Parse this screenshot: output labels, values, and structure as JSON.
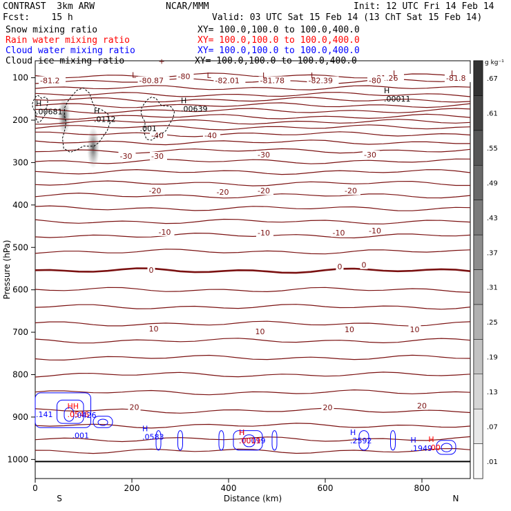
{
  "header": {
    "model": "CONTRAST  3km ARW",
    "org": "NCAR/MMM",
    "init": "Init: 12 UTC Fri 14 Feb 14",
    "fcst": "Fcst:    15 h",
    "valid": "Valid: 03 UTC Sat 15 Feb 14 (13 ChT Sat 15 Feb 14)"
  },
  "fields": [
    {
      "name": "Snow mixing ratio",
      "xy": "XY= 100.0,100.0 to 100.0,400.0",
      "color": "#000000"
    },
    {
      "name": "Rain water mixing ratio",
      "xy": "XY= 100.0,100.0 to 100.0,400.0",
      "color": "#ff0000"
    },
    {
      "name": "Cloud water mixing ratio",
      "xy": "XY= 100.0,100.0 to 100.0,400.0",
      "color": "#0000ff"
    },
    {
      "name": "Cloud ice mixing ratio",
      "xy": "XY= 100.0,100.0 to 100.0,400.0",
      "color": "#000000"
    }
  ],
  "chart_data": {
    "type": "contour-cross-section",
    "xlabel": "Distance (km)",
    "ylabel": "Pressure (hPa)",
    "xlim": [
      0,
      900
    ],
    "ylim": [
      1045,
      60
    ],
    "x_ticks": [
      0,
      200,
      400,
      600,
      800
    ],
    "x_tick_labels": [
      "0",
      "200",
      "400",
      "600",
      "800"
    ],
    "y_ticks": [
      100,
      200,
      300,
      400,
      500,
      600,
      700,
      800,
      900,
      1000
    ],
    "y_tick_labels": [
      "100",
      "200",
      "300",
      "400",
      "500",
      "600",
      "700",
      "800",
      "900",
      "1000"
    ],
    "end_labels": {
      "left": "S",
      "right": "N"
    },
    "colorbar": {
      "unit": "g kg⁻¹",
      "levels": [
        ".01",
        ".07",
        ".13",
        ".19",
        ".25",
        ".31",
        ".37",
        ".43",
        ".49",
        ".55",
        ".61",
        ".67"
      ]
    },
    "surface_pressure": 1005,
    "temperature_contours": {
      "color": "#7a1010",
      "levels_pressure": [
        95,
        108,
        124,
        140,
        152,
        165,
        178,
        192,
        204,
        217,
        233,
        252,
        272,
        297,
        322,
        349,
        378,
        408,
        439,
        472,
        510,
        555,
        600,
        640,
        680,
        720,
        760,
        800,
        842,
        885,
        920,
        952,
        980
      ],
      "labels": [
        {
          "x": 10,
          "p": 113,
          "text": "-81.2"
        },
        {
          "x": 215,
          "p": 113,
          "text": "-80.87"
        },
        {
          "x": 372,
          "p": 113,
          "text": "-82.01"
        },
        {
          "x": 465,
          "p": 113,
          "text": "-81.78"
        },
        {
          "x": 565,
          "p": 113,
          "text": "-82.39"
        },
        {
          "x": 700,
          "p": 107,
          "text": "-81.26"
        },
        {
          "x": 850,
          "p": 107,
          "text": "-81.8"
        },
        {
          "x": 295,
          "p": 103,
          "text": "-80"
        },
        {
          "x": 690,
          "p": 113,
          "text": "-80"
        },
        {
          "x": 240,
          "p": 242,
          "text": "-40"
        },
        {
          "x": 350,
          "p": 242,
          "text": "-40"
        },
        {
          "x": 175,
          "p": 291,
          "text": "-30"
        },
        {
          "x": 240,
          "p": 291,
          "text": "-30"
        },
        {
          "x": 460,
          "p": 288,
          "text": "-30"
        },
        {
          "x": 680,
          "p": 288,
          "text": "-30"
        },
        {
          "x": 235,
          "p": 373,
          "text": "-20"
        },
        {
          "x": 375,
          "p": 376,
          "text": "-20"
        },
        {
          "x": 460,
          "p": 373,
          "text": "-20"
        },
        {
          "x": 640,
          "p": 373,
          "text": "-20"
        },
        {
          "x": 255,
          "p": 470,
          "text": "-10"
        },
        {
          "x": 460,
          "p": 472,
          "text": "-10"
        },
        {
          "x": 615,
          "p": 472,
          "text": "-10"
        },
        {
          "x": 690,
          "p": 467,
          "text": "-10"
        },
        {
          "x": 235,
          "p": 560,
          "text": "0"
        },
        {
          "x": 625,
          "p": 552,
          "text": "0"
        },
        {
          "x": 675,
          "p": 548,
          "text": "0"
        },
        {
          "x": 235,
          "p": 698,
          "text": "10"
        },
        {
          "x": 455,
          "p": 705,
          "text": "10"
        },
        {
          "x": 640,
          "p": 700,
          "text": "10"
        },
        {
          "x": 775,
          "p": 700,
          "text": "10"
        },
        {
          "x": 195,
          "p": 883,
          "text": "20"
        },
        {
          "x": 595,
          "p": 884,
          "text": "20"
        },
        {
          "x": 790,
          "p": 880,
          "text": "20"
        }
      ]
    },
    "extrema_labels": [
      {
        "x": 0,
        "p": 186,
        "mark": "H",
        "value": ".00681",
        "color": "#000000"
      },
      {
        "x": 120,
        "p": 204,
        "mark": "H",
        "value": ".0112",
        "color": "#000000"
      },
      {
        "x": 215,
        "p": 226,
        "mark": "",
        "value": ".001",
        "color": "#000000"
      },
      {
        "x": 300,
        "p": 180,
        "mark": "H",
        "value": ".00639",
        "color": "#000000"
      },
      {
        "x": 720,
        "p": 156,
        "mark": "H",
        "value": ".00011",
        "color": "#000000"
      },
      {
        "x": 0,
        "p": 900,
        "mark": "",
        "value": ".141",
        "color": "#0000ff"
      },
      {
        "x": 65,
        "p": 900,
        "mark": "HH",
        "value": ".0546",
        "color": "#ff0000"
      },
      {
        "x": 80,
        "p": 902,
        "mark": "",
        "value": ".0426",
        "color": "#0000ff"
      },
      {
        "x": 75,
        "p": 950,
        "mark": "",
        "value": ".001",
        "color": "#0000ff"
      },
      {
        "x": 220,
        "p": 953,
        "mark": "H",
        "value": ".0583",
        "color": "#0000ff"
      },
      {
        "x": 420,
        "p": 962,
        "mark": "H",
        "value": ".00019",
        "color": "#0000ff"
      },
      {
        "x": 420,
        "p": 962,
        "mark": "H",
        "value": ".0019",
        "color": "#ff0000"
      },
      {
        "x": 650,
        "p": 962,
        "mark": "H",
        "value": ".2592",
        "color": "#0000ff"
      },
      {
        "x": 775,
        "p": 980,
        "mark": "H",
        "value": ".1949",
        "color": "#0000ff"
      },
      {
        "x": 812,
        "p": 978,
        "mark": "H",
        "value": ".00",
        "color": "#ff0000"
      }
    ],
    "low_marks": [
      {
        "x": 200,
        "p": 100,
        "mark": "L"
      },
      {
        "x": 355,
        "p": 101,
        "mark": "L"
      },
      {
        "x": 470,
        "p": 101,
        "mark": "L"
      },
      {
        "x": 570,
        "p": 101,
        "mark": "L"
      },
      {
        "x": 740,
        "p": 96,
        "mark": "L"
      },
      {
        "x": 860,
        "p": 96,
        "mark": "L"
      },
      {
        "x": 255,
        "p": 67,
        "mark": "+"
      }
    ]
  }
}
